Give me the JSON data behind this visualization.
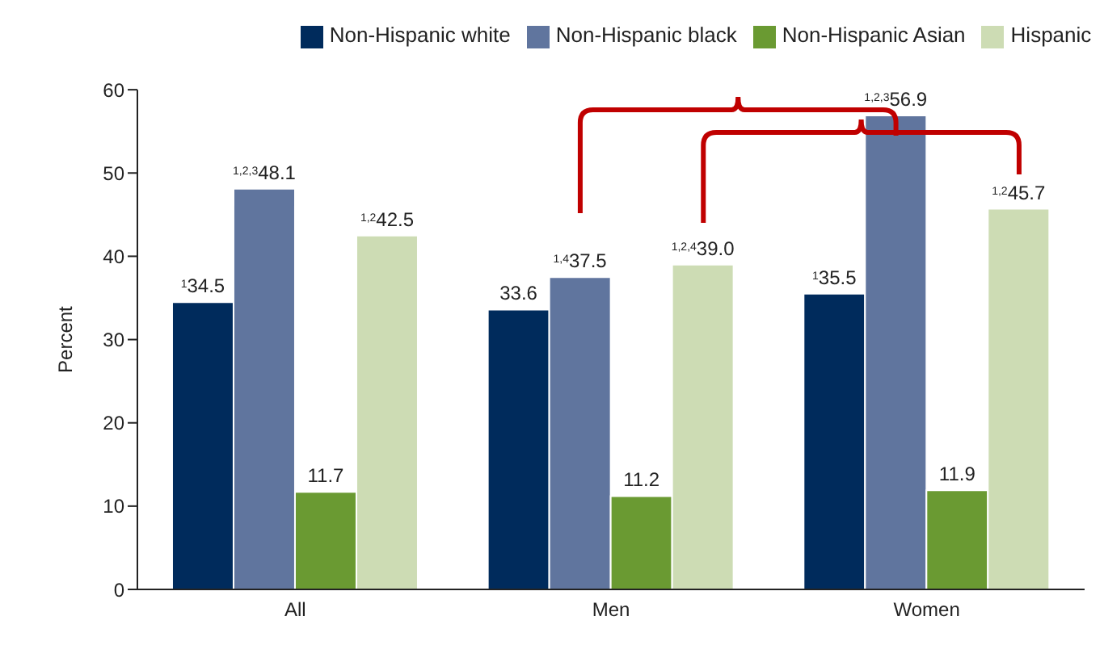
{
  "chart_data": {
    "type": "bar",
    "ylabel": "Percent",
    "categories": [
      "All",
      "Men",
      "Women"
    ],
    "series": [
      {
        "name": "Non-Hispanic white",
        "color": "#002b5c",
        "values": [
          34.5,
          33.6,
          35.5
        ],
        "value_labels": [
          "$^{1}$34.5",
          "33.6",
          "$^{1}$35.5"
        ]
      },
      {
        "name": "Non-Hispanic black",
        "color": "#60759e",
        "values": [
          48.1,
          37.5,
          56.9
        ],
        "value_labels": [
          "$^{1,2,3}$48.1",
          "$^{1,4}$37.5",
          "$^{1,2,3}$56.9"
        ]
      },
      {
        "name": "Non-Hispanic Asian",
        "color": "#6a9a32",
        "values": [
          11.7,
          11.2,
          11.9
        ],
        "value_labels": [
          "11.7",
          "11.2",
          "11.9"
        ]
      },
      {
        "name": "Hispanic",
        "color": "#cddcb4",
        "values": [
          42.5,
          39.0,
          45.7
        ],
        "value_labels": [
          "$^{1,2}$42.5",
          "$^{1,2,4}$39.0",
          "$^{1,2}$45.7"
        ]
      }
    ],
    "ylim": [
      0,
      60
    ],
    "yticks": [
      0,
      10,
      20,
      30,
      40,
      50,
      60
    ],
    "grid": false,
    "legend": "top"
  }
}
